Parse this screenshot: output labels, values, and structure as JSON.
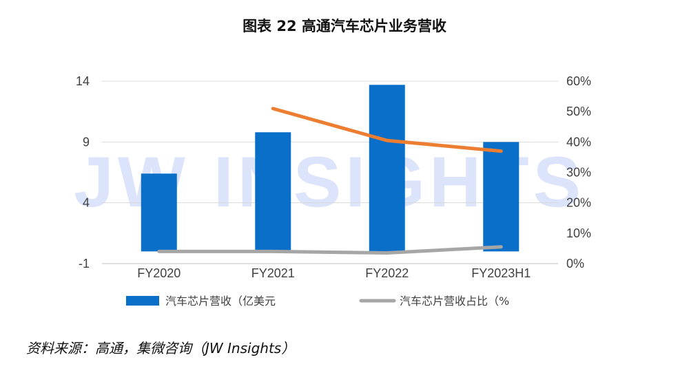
{
  "title": "图表 22  高通汽车芯片业务营收",
  "source": "资料来源：高通，集微咨询（JW Insights）",
  "watermark": "JW INSIGHTS",
  "colors": {
    "bar": "#0a6fc9",
    "ratio_line": "#a6a6a6",
    "orange_line": "#ed7d31"
  },
  "chart_data": {
    "type": "bar",
    "categories": [
      "FY2020",
      "FY2021",
      "FY2022",
      "FY2023H1"
    ],
    "series": [
      {
        "name": "汽车芯片营收（亿美元",
        "type": "bar",
        "axis": "left",
        "values": [
          6.4,
          9.8,
          13.7,
          9.0
        ]
      },
      {
        "name": "汽车芯片营收占比（%",
        "type": "line",
        "axis": "right",
        "values": [
          0.04,
          0.04,
          0.035,
          0.055
        ]
      },
      {
        "name": "",
        "type": "line",
        "axis": "right",
        "values": [
          null,
          0.51,
          0.405,
          0.37
        ]
      }
    ],
    "yleft": {
      "min": -1,
      "max": 14,
      "ticks": [
        "14",
        "9",
        "4",
        "-1"
      ],
      "tick_values": [
        14,
        9,
        4,
        -1
      ]
    },
    "yright": {
      "min": 0,
      "max": 0.6,
      "ticks": [
        "60%",
        "50%",
        "40%",
        "30%",
        "20%",
        "10%",
        "0%"
      ],
      "tick_values": [
        0.6,
        0.5,
        0.4,
        0.3,
        0.2,
        0.1,
        0
      ]
    },
    "legend_position": "bottom"
  }
}
